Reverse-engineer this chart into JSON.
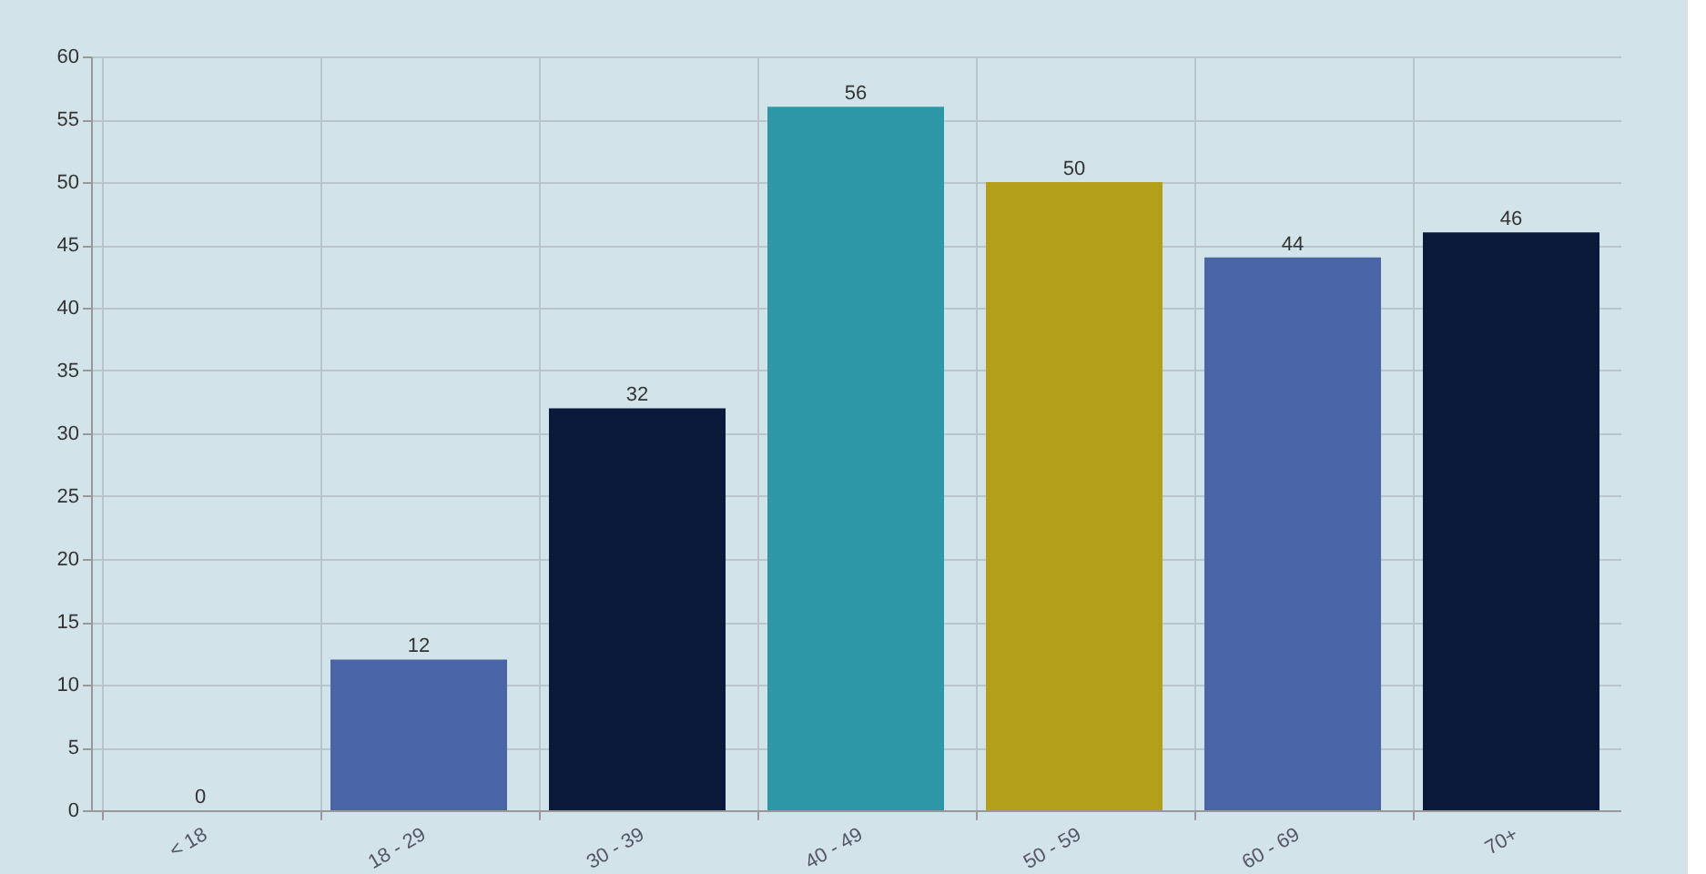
{
  "chart_data": {
    "type": "bar",
    "categories": [
      "< 18",
      "18 - 29",
      "30 - 39",
      "40 - 49",
      "50 - 59",
      "60 - 69",
      "70+"
    ],
    "values": [
      0,
      12,
      32,
      56,
      50,
      44,
      46
    ],
    "colors": [
      "#b39f1a",
      "#4a66a6",
      "#0b1a3a",
      "#2e97a7",
      "#b39f1a",
      "#4a66a6",
      "#0b1a3a"
    ],
    "ylim": [
      0,
      60
    ],
    "yticks": [
      0,
      5,
      10,
      15,
      20,
      25,
      30,
      35,
      40,
      45,
      50,
      55,
      60
    ],
    "grid": true,
    "data_labels": true
  }
}
